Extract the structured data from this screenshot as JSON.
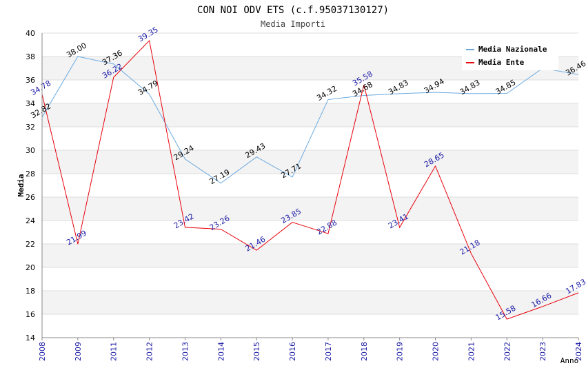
{
  "chart_data": {
    "type": "line",
    "title": "CON NOI ODV ETS (c.f.95037130127)",
    "subtitle": "Media Importi",
    "xlabel": "Anno",
    "ylabel": "Media",
    "ylim": [
      14,
      40
    ],
    "yticks": [
      14,
      16,
      18,
      20,
      22,
      24,
      26,
      28,
      30,
      32,
      34,
      36,
      38,
      40
    ],
    "grid": true,
    "legend_position": "top-right",
    "categories": [
      "2008",
      "2009",
      "2011",
      "2012",
      "2013",
      "2014",
      "2015",
      "2016",
      "2017",
      "2018",
      "2019",
      "2020",
      "2021",
      "2022",
      "2023",
      "2024"
    ],
    "series": [
      {
        "name": "Media Nazionale",
        "color": "#6aa9e0",
        "label_color": "#000000",
        "values": [
          32.82,
          38.0,
          37.36,
          34.79,
          29.24,
          27.19,
          29.43,
          27.71,
          34.32,
          34.68,
          34.83,
          34.94,
          34.83,
          34.85,
          37.0,
          36.46
        ],
        "labels": [
          "32.82",
          "38.00",
          "37.36",
          "34.79",
          "29.24",
          "27.19",
          "29.43",
          "27.71",
          "34.32",
          "34.68",
          "34.83",
          "34.94",
          "34.83",
          "34.85",
          "",
          "36.46"
        ]
      },
      {
        "name": "Media Ente",
        "color": "#e8000b",
        "label_color": "#1a1aa6",
        "values": [
          34.78,
          21.99,
          36.22,
          39.35,
          23.42,
          23.26,
          21.46,
          23.85,
          22.88,
          35.58,
          23.41,
          28.65,
          21.18,
          15.58,
          16.66,
          17.83
        ],
        "labels": [
          "34.78",
          "21.99",
          "36.22",
          "39.35",
          "23.42",
          "23.26",
          "21.46",
          "23.85",
          "22.88",
          "35.58",
          "23.41",
          "28.65",
          "21.18",
          "15.58",
          "16.66",
          "17.83"
        ]
      }
    ]
  }
}
